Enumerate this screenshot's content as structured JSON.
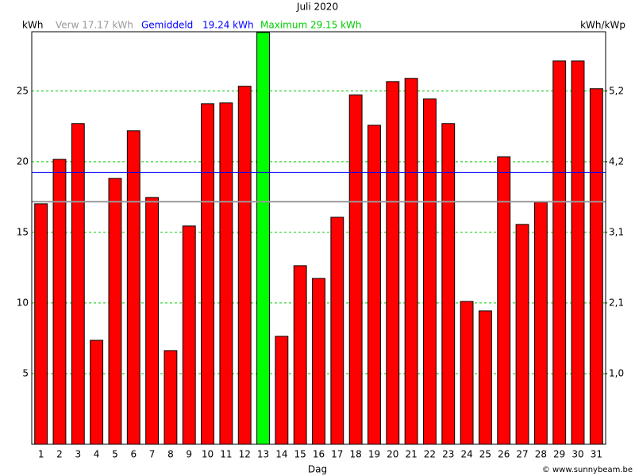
{
  "chart_data": {
    "type": "bar",
    "title": "Juli 2020",
    "x_label": "Dag",
    "y_label": "kWh",
    "y2_label": "kWh/kWp",
    "footer": "© www.sunnybeam.be",
    "categories": [
      "1",
      "2",
      "3",
      "4",
      "5",
      "6",
      "7",
      "8",
      "9",
      "10",
      "11",
      "12",
      "13",
      "14",
      "15",
      "16",
      "17",
      "18",
      "19",
      "20",
      "21",
      "22",
      "23",
      "24",
      "25",
      "26",
      "27",
      "28",
      "29",
      "30",
      "31"
    ],
    "values": [
      17.02,
      20.17,
      22.7,
      7.36,
      18.82,
      22.19,
      17.47,
      6.63,
      15.45,
      24.1,
      24.16,
      25.34,
      29.15,
      7.64,
      12.64,
      11.74,
      16.07,
      24.72,
      22.58,
      25.67,
      25.9,
      24.44,
      22.7,
      10.11,
      9.44,
      20.34,
      15.56,
      17.13,
      27.13,
      27.13,
      25.17
    ],
    "color": "#ff0000",
    "max_color": "#00ff00",
    "max_label": "Maximum 29.15 kWh",
    "average_name": "Gemiddeld",
    "reference_lines": [
      {
        "label": "Verw 17.17 kWh",
        "value": 17.17,
        "color": "#999999"
      },
      {
        "label": "19.24 kWh",
        "value": 19.24,
        "color": "#0000ff"
      }
    ],
    "ylim": [
      0,
      29.2
    ],
    "yticks": [
      5,
      10,
      15,
      20,
      25
    ],
    "y2lim": [
      0,
      6.071
    ],
    "y2ticks": [
      {
        "value": 1.04,
        "label": "1,0"
      },
      {
        "value": 2.079,
        "label": "2,1"
      },
      {
        "value": 3.119,
        "label": "3,1"
      },
      {
        "value": 4.158,
        "label": "4,2"
      },
      {
        "value": 5.198,
        "label": "5,2"
      }
    ],
    "grid": true,
    "grid_color": "#00cc00"
  }
}
